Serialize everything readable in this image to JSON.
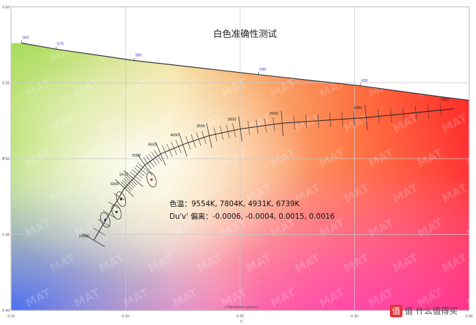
{
  "chart_data": {
    "type": "scatter",
    "title": "白色准确性测试",
    "xlabel": "u'",
    "ylabel": "v'",
    "xlim": [
      0.15,
      0.35
    ],
    "ylim": [
      0.4,
      0.6
    ],
    "x_ticks": [
      "0.15",
      "0.20",
      "0.25",
      "0.30",
      "0.35"
    ],
    "y_ticks": [
      "0.40",
      "0.45",
      "0.50",
      "0.55",
      "0.60"
    ],
    "grid": true,
    "spectral_locus": {
      "points": [
        [
          0.1545,
          0.5762
        ],
        [
          0.1696,
          0.5722
        ],
        [
          0.2038,
          0.5647
        ],
        [
          0.2581,
          0.5554
        ],
        [
          0.3026,
          0.548
        ],
        [
          0.3358,
          0.5412
        ],
        [
          0.35,
          0.5385
        ]
      ],
      "wavelength_labels": [
        {
          "label": "560",
          "u": 0.1545,
          "v": 0.5762
        },
        {
          "label": "570",
          "u": 0.1696,
          "v": 0.5722
        },
        {
          "label": "580",
          "u": 0.2038,
          "v": 0.5647
        },
        {
          "label": "590",
          "u": 0.2581,
          "v": 0.5554
        },
        {
          "label": "600",
          "u": 0.3026,
          "v": 0.548
        }
      ]
    },
    "planckian_locus": {
      "cct_labels": [
        {
          "label": "10000",
          "u": 0.1861,
          "v": 0.4462
        },
        {
          "label": "6000",
          "u": 0.1995,
          "v": 0.4806
        },
        {
          "label": "5500",
          "u": 0.2034,
          "v": 0.4869
        },
        {
          "label": "5000",
          "u": 0.2084,
          "v": 0.4958
        },
        {
          "label": "4500",
          "u": 0.2153,
          "v": 0.5031
        },
        {
          "label": "4000",
          "u": 0.225,
          "v": 0.5093
        },
        {
          "label": "3500",
          "u": 0.2365,
          "v": 0.5152
        },
        {
          "label": "3000",
          "u": 0.2501,
          "v": 0.5196
        },
        {
          "label": "2500",
          "u": 0.2684,
          "v": 0.5234
        },
        {
          "label": "2000",
          "u": 0.3051,
          "v": 0.5271
        },
        {
          "label": "1500",
          "u": 0.3431,
          "v": 0.5328
        }
      ]
    },
    "series": [
      {
        "name": "",
        "cct": "9554K",
        "duv": -0.0006,
        "u": 0.1911,
        "v": 0.4596,
        "color": "#1a1a66"
      },
      {
        "name": "",
        "cct": "7804K",
        "duv": -0.0004,
        "u": 0.196,
        "v": 0.4649,
        "color": "#1a1a1a"
      },
      {
        "name": "",
        "cct": "4931K",
        "duv": 0.0015,
        "u": 0.2113,
        "v": 0.4862,
        "color": "#d11a1a"
      },
      {
        "name": "",
        "cct": "6739K",
        "duv": 0.0016,
        "u": 0.198,
        "v": 0.4733,
        "color": "#1a1a1a"
      }
    ],
    "annotations": {
      "cct_line": "色温：9554K, 7804K, 4931K, 6739K",
      "duv_line": "Du'v' 偏离：-0.0006, -0.0004, 0.0015, 0.0016",
      "ellipse_label": "3 MacAdam ellipses"
    },
    "watermark": "MAT"
  },
  "branding": {
    "site_text": "值 什么值得买",
    "logo_char": "值"
  },
  "colors": {
    "grid": "#c9c9c9",
    "locus": "#333333",
    "wavelength_label": "#3a3acc",
    "red_corner": "#ff2d2d",
    "white_point": "#ffffff",
    "green_corner": "#9fd33a",
    "blue_corner": "#4a78ff"
  }
}
